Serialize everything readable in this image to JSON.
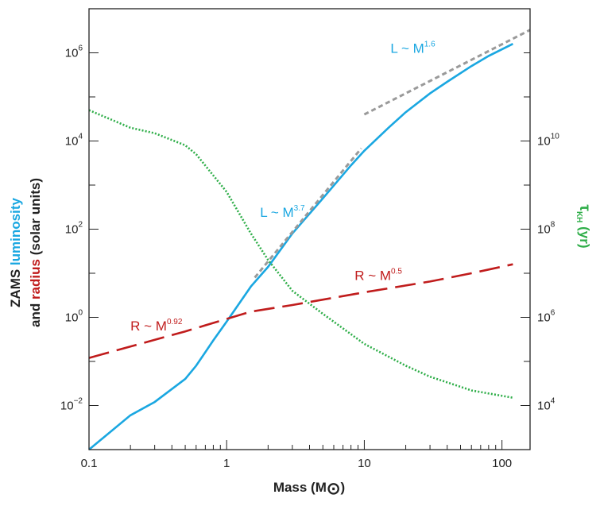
{
  "chart_data": {
    "type": "line",
    "xscale": "log",
    "yscale": "log",
    "xlim": [
      0.1,
      160
    ],
    "ylim_left": [
      0.001,
      10000000
    ],
    "ylim_right": [
      1000,
      10000000000000
    ],
    "xlabel": "Mass (M",
    "xlabel_symbol": "⊙",
    "xlabel_close": ")",
    "ylabel_left": {
      "line1_parts": [
        {
          "text": "ZAMS ",
          "color": "#222222"
        },
        {
          "text": "luminosity",
          "color": "#1aa7e1"
        }
      ],
      "line2_parts": [
        {
          "text": "and ",
          "color": "#222222"
        },
        {
          "text": "radius",
          "color": "#c01c1c"
        },
        {
          "text": " (solar units)",
          "color": "#222222"
        }
      ]
    },
    "ylabel_right": {
      "symbol": "τ",
      "subscript": "KH",
      "unit": " (yr)",
      "color": "#2fae49"
    },
    "x_ticks": [
      {
        "value": 0.1,
        "label": "0.1"
      },
      {
        "value": 1,
        "label": "1"
      },
      {
        "value": 10,
        "label": "10"
      },
      {
        "value": 100,
        "label": "100"
      }
    ],
    "y_left_ticks": [
      {
        "value": 0.01,
        "base": "10",
        "exp": "−2"
      },
      {
        "value": 1,
        "base": "10",
        "exp": "0"
      },
      {
        "value": 100,
        "base": "10",
        "exp": "2"
      },
      {
        "value": 10000,
        "base": "10",
        "exp": "4"
      },
      {
        "value": 1000000,
        "base": "10",
        "exp": "6"
      }
    ],
    "y_right_ticks": [
      {
        "value": 10000,
        "base": "10",
        "exp": "4"
      },
      {
        "value": 1000000,
        "base": "10",
        "exp": "6"
      },
      {
        "value": 100000000,
        "base": "10",
        "exp": "8"
      },
      {
        "value": 10000000000,
        "base": "10",
        "exp": "10"
      }
    ],
    "series": [
      {
        "name": "ZAMS luminosity",
        "axis": "left",
        "color": "#1aa7e1",
        "style": "solid",
        "x": [
          0.1,
          0.2,
          0.3,
          0.5,
          0.6,
          0.8,
          1.0,
          1.5,
          2,
          3,
          5,
          8,
          10,
          15,
          20,
          30,
          40,
          60,
          80,
          120
        ],
        "y": [
          0.001,
          0.006,
          0.012,
          0.04,
          0.08,
          0.3,
          0.8,
          5,
          14,
          80,
          500,
          2800,
          6000,
          20000,
          45000,
          120000,
          220000,
          500000,
          850000,
          1600000
        ]
      },
      {
        "name": "Radius",
        "axis": "left",
        "color": "#c01c1c",
        "style": "dashed",
        "x": [
          0.1,
          0.5,
          1,
          1.5,
          3,
          10,
          30,
          60,
          120
        ],
        "y": [
          0.12,
          0.48,
          0.92,
          1.35,
          1.9,
          3.7,
          6.5,
          10,
          16
        ]
      },
      {
        "name": "Kelvin-Helmholtz timescale",
        "axis": "right",
        "color": "#2fae49",
        "style": "dotted",
        "x": [
          0.1,
          0.2,
          0.3,
          0.5,
          0.6,
          1,
          1.5,
          2,
          3,
          5,
          10,
          20,
          30,
          60,
          120
        ],
        "y": [
          50000000000,
          20000000000,
          15000000000,
          8000000000,
          5000000000,
          700000000,
          80000000,
          20000000,
          4000000,
          1200000,
          250000,
          80000,
          45000,
          22000,
          15000
        ]
      },
      {
        "name": "L ~ M^3.7 fit",
        "axis": "left",
        "color": "#9a9a9a",
        "style": "short-dashed",
        "x": [
          1.6,
          9.5
        ],
        "y": [
          8,
          6800
        ]
      },
      {
        "name": "L ~ M^1.6 fit",
        "axis": "left",
        "color": "#9a9a9a",
        "style": "short-dashed",
        "x": [
          10,
          160
        ],
        "y": [
          40000,
          3300000
        ]
      }
    ],
    "annotations": [
      {
        "base": "L ~ M",
        "exp": "1.6",
        "color": "#1aa7e1",
        "x": 15.5,
        "y": 1000000
      },
      {
        "base": "L ~ M",
        "exp": "3.7",
        "color": "#1aa7e1",
        "x": 1.75,
        "y": 190
      },
      {
        "base": "R ~ M",
        "exp": "0.5",
        "color": "#c01c1c",
        "x": 8.5,
        "y": 7
      },
      {
        "base": "R ~ M",
        "exp": "0.92",
        "color": "#c01c1c",
        "x": 0.2,
        "y": 0.5
      }
    ]
  }
}
